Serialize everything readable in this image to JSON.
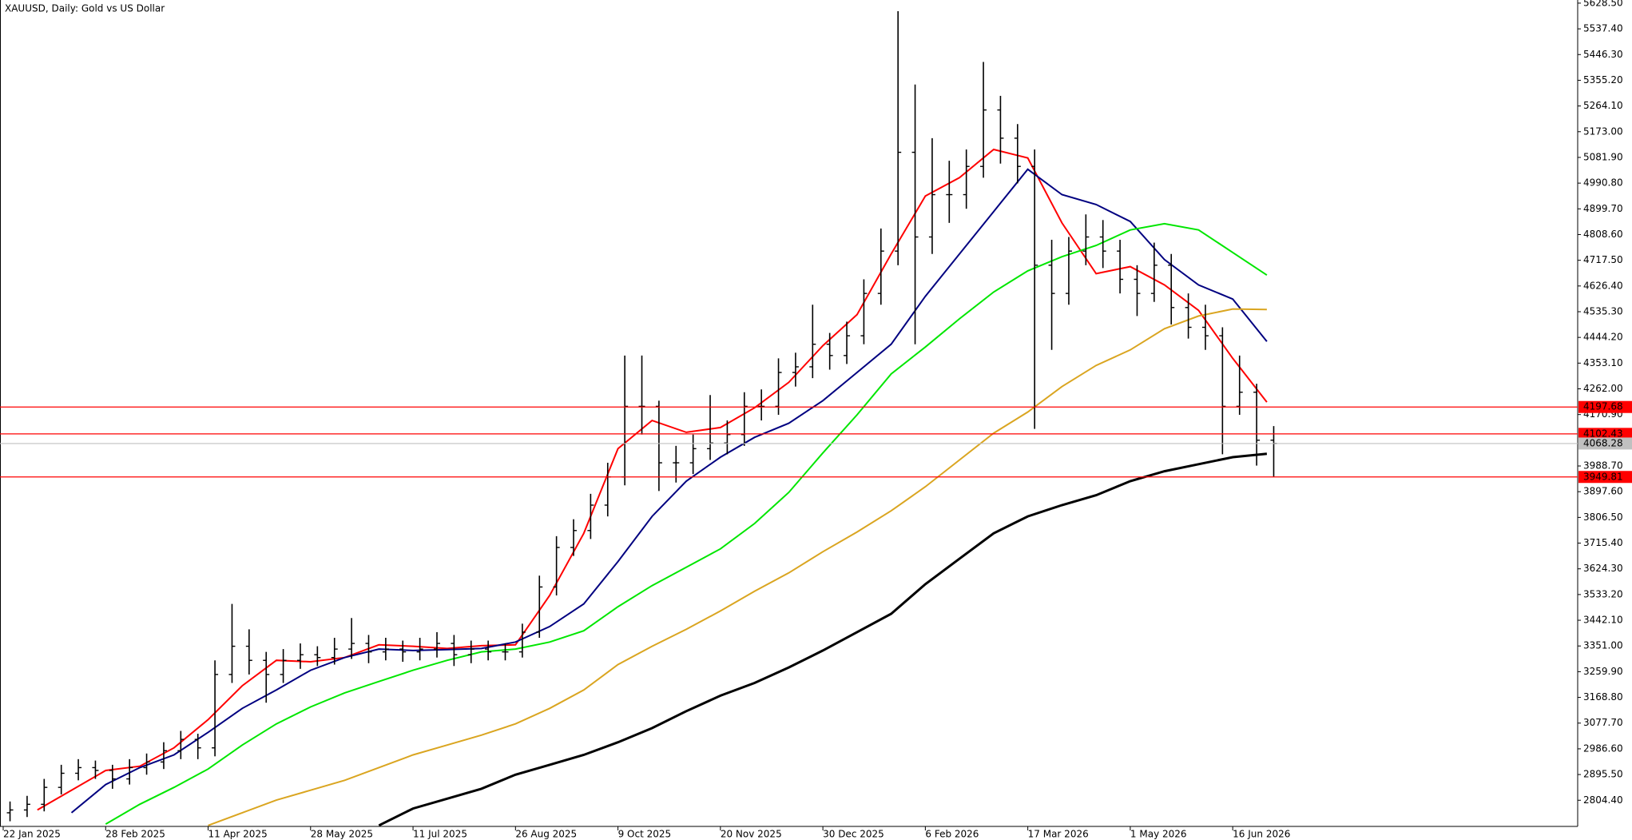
{
  "chart_data": {
    "type": "ohlc",
    "title": "XAUUSD, Daily:  Gold vs US Dollar",
    "color": "#000000",
    "x": [
      2,
      7,
      12,
      17,
      22,
      27,
      32,
      37,
      42,
      47,
      52,
      57,
      62,
      67,
      72,
      77,
      82,
      87,
      92,
      97,
      102,
      107,
      112,
      117,
      122,
      127,
      132,
      137,
      142,
      147,
      152,
      157,
      162,
      167,
      172,
      177,
      182,
      187,
      192,
      197,
      202,
      207,
      212,
      217,
      222,
      227,
      232,
      237,
      242,
      247,
      252,
      257,
      262,
      267,
      272,
      277,
      282,
      287,
      292,
      297,
      302,
      307,
      312,
      317,
      322,
      327,
      332,
      337,
      342,
      347,
      352,
      357,
      362,
      367,
      372
    ],
    "open": [
      2760,
      2770,
      2790,
      2850,
      2900,
      2920,
      2910,
      2880,
      2920,
      2940,
      2980,
      3020,
      2990,
      3250,
      3350,
      3300,
      3250,
      3300,
      3320,
      3310,
      3340,
      3360,
      3330,
      3340,
      3330,
      3340,
      3360,
      3320,
      3340,
      3330,
      3330,
      3400,
      3560,
      3700,
      3760,
      3850,
      3950,
      4200,
      4200,
      4000,
      4000,
      4050,
      4070,
      4100,
      4200,
      4200,
      4320,
      4340,
      4420,
      4380,
      4450,
      4600,
      4750,
      5100,
      4800,
      4950,
      4950,
      5050,
      5250,
      5150,
      5050,
      4700,
      4600,
      4750,
      4800,
      4750,
      4650,
      4600,
      4700,
      4550,
      4480,
      4450,
      4200,
      4250,
      4080
    ],
    "high": [
      2800,
      2820,
      2880,
      2930,
      2950,
      2945,
      2930,
      2950,
      2970,
      3010,
      3050,
      3040,
      3300,
      3500,
      3410,
      3330,
      3340,
      3360,
      3350,
      3380,
      3450,
      3390,
      3380,
      3370,
      3380,
      3400,
      3390,
      3370,
      3370,
      3360,
      3430,
      3600,
      3740,
      3800,
      3890,
      4000,
      4380,
      4380,
      4220,
      4060,
      4100,
      4240,
      4150,
      4250,
      4260,
      4370,
      4390,
      4560,
      4460,
      4500,
      4650,
      4830,
      5600,
      5340,
      5150,
      5070,
      5110,
      5420,
      5300,
      5200,
      5110,
      4790,
      4800,
      4880,
      4860,
      4790,
      4700,
      4780,
      4740,
      4600,
      4560,
      4480,
      4380,
      4280,
      4130
    ],
    "low": [
      2730,
      2745,
      2765,
      2825,
      2875,
      2880,
      2845,
      2860,
      2895,
      2915,
      2950,
      2950,
      2960,
      3220,
      3250,
      3150,
      3220,
      3270,
      3280,
      3285,
      3305,
      3290,
      3300,
      3295,
      3300,
      3310,
      3280,
      3290,
      3300,
      3300,
      3310,
      3380,
      3530,
      3670,
      3730,
      3810,
      3920,
      4100,
      3900,
      3930,
      3960,
      4010,
      4030,
      4060,
      4150,
      4170,
      4270,
      4300,
      4330,
      4350,
      4420,
      4560,
      4700,
      4420,
      4740,
      4850,
      4900,
      5010,
      5060,
      4990,
      4120,
      4400,
      4560,
      4700,
      4690,
      4600,
      4520,
      4570,
      4490,
      4440,
      4400,
      4030,
      4170,
      3990,
      3950
    ],
    "close": [
      2770,
      2790,
      2850,
      2900,
      2920,
      2910,
      2880,
      2920,
      2940,
      2980,
      3020,
      2990,
      3250,
      3350,
      3300,
      3250,
      3300,
      3320,
      3310,
      3340,
      3360,
      3330,
      3340,
      3330,
      3340,
      3360,
      3320,
      3340,
      3330,
      3330,
      3400,
      3560,
      3700,
      3760,
      3850,
      3950,
      4200,
      4200,
      4000,
      4000,
      4050,
      4070,
      4100,
      4200,
      4200,
      4320,
      4340,
      4420,
      4380,
      4450,
      4600,
      4750,
      5100,
      4800,
      4950,
      4950,
      5050,
      5250,
      5150,
      5050,
      4700,
      4600,
      4750,
      4800,
      4750,
      4650,
      4600,
      4700,
      4550,
      4480,
      4450,
      4200,
      4250,
      4080,
      4068.28
    ],
    "lines": [
      {
        "color": "#ff0000",
        "x": [
          0,
          10,
          20,
          30,
          40,
          50,
          60,
          70,
          80,
          90,
          100,
          110,
          120,
          130,
          140,
          150,
          160,
          170,
          180,
          190,
          200,
          210,
          220,
          230,
          240,
          250,
          260,
          270,
          280,
          290,
          300,
          310,
          320,
          330,
          340,
          350,
          360,
          370
        ],
        "values": [
          null,
          2770,
          2840,
          2910,
          2925,
          2990,
          3090,
          3210,
          3300,
          3295,
          3310,
          3355,
          3350,
          3342,
          3352,
          3355,
          3530,
          3750,
          4050,
          4150,
          4108,
          4125,
          4195,
          4285,
          4415,
          4525,
          4740,
          4945,
          5010,
          5110,
          5080,
          4850,
          4670,
          4695,
          4630,
          4540,
          4370,
          4215
        ]
      },
      {
        "color": "#000080",
        "x": [
          0,
          10,
          20,
          30,
          40,
          50,
          60,
          70,
          80,
          90,
          100,
          110,
          120,
          130,
          140,
          150,
          160,
          170,
          180,
          190,
          200,
          210,
          220,
          230,
          240,
          250,
          260,
          270,
          280,
          290,
          300,
          310,
          320,
          330,
          340,
          350,
          360,
          370
        ],
        "values": [
          null,
          null,
          2760,
          2860,
          2920,
          2965,
          3045,
          3130,
          3195,
          3265,
          3310,
          3340,
          3335,
          3338,
          3342,
          3365,
          3420,
          3500,
          3650,
          3810,
          3935,
          4020,
          4090,
          4140,
          4220,
          4320,
          4420,
          4590,
          4740,
          4890,
          5040,
          4950,
          4915,
          4855,
          4720,
          4630,
          4580,
          4430
        ]
      },
      {
        "color": "#00e600",
        "x": [
          0,
          10,
          20,
          30,
          40,
          50,
          60,
          70,
          80,
          90,
          100,
          110,
          120,
          130,
          140,
          150,
          160,
          170,
          180,
          190,
          200,
          210,
          220,
          230,
          240,
          250,
          260,
          270,
          280,
          290,
          300,
          310,
          320,
          330,
          340,
          350,
          360,
          370
        ],
        "values": [
          null,
          null,
          null,
          2720,
          2790,
          2850,
          2915,
          3000,
          3075,
          3135,
          3185,
          3225,
          3265,
          3300,
          3330,
          3340,
          3365,
          3405,
          3490,
          3565,
          3630,
          3695,
          3785,
          3895,
          4035,
          4170,
          4315,
          4410,
          4510,
          4605,
          4680,
          4730,
          4770,
          4825,
          4847,
          4825,
          4745,
          4665
        ]
      },
      {
        "color": "#daa520",
        "x": [
          0,
          10,
          20,
          30,
          40,
          50,
          60,
          70,
          80,
          90,
          100,
          110,
          120,
          130,
          140,
          150,
          160,
          170,
          180,
          190,
          200,
          210,
          220,
          230,
          240,
          250,
          260,
          270,
          280,
          290,
          300,
          310,
          320,
          330,
          340,
          350,
          360,
          370
        ],
        "values": [
          null,
          null,
          null,
          null,
          null,
          null,
          2715,
          2760,
          2805,
          2840,
          2875,
          2920,
          2965,
          3000,
          3035,
          3075,
          3130,
          3195,
          3285,
          3350,
          3410,
          3475,
          3545,
          3610,
          3685,
          3755,
          3830,
          3915,
          4010,
          4105,
          4180,
          4270,
          4345,
          4400,
          4475,
          4520,
          4545,
          4543
        ]
      },
      {
        "color": "#000000",
        "x": [
          0,
          10,
          20,
          30,
          40,
          50,
          60,
          70,
          80,
          90,
          100,
          110,
          120,
          130,
          140,
          150,
          160,
          170,
          180,
          190,
          200,
          210,
          220,
          230,
          240,
          250,
          260,
          270,
          280,
          290,
          300,
          310,
          320,
          330,
          340,
          350,
          360,
          370
        ],
        "values": [
          null,
          null,
          null,
          null,
          null,
          null,
          null,
          null,
          null,
          null,
          null,
          2715,
          2775,
          2810,
          2845,
          2895,
          2930,
          2965,
          3010,
          3060,
          3120,
          3175,
          3220,
          3275,
          3335,
          3400,
          3465,
          3570,
          3660,
          3750,
          3810,
          3850,
          3885,
          3935,
          3970,
          3995,
          4020,
          4032
        ]
      }
    ],
    "levels": [
      {
        "value": 4197.68,
        "color": "#ff0000"
      },
      {
        "value": 4102.43,
        "color": "#ff0000"
      },
      {
        "value": 3949.81,
        "color": "#ff0000"
      },
      {
        "value": 4068.28,
        "color": "#c0c0c0"
      }
    ],
    "xlim": [
      0,
      461
    ],
    "xticks": [
      {
        "value": 0,
        "label": "22 Jan 2025"
      },
      {
        "value": 30,
        "label": "28 Feb 2025"
      },
      {
        "value": 60,
        "label": "11 Apr 2025"
      },
      {
        "value": 90,
        "label": "28 May 2025"
      },
      {
        "value": 120,
        "label": "11 Jul 2025"
      },
      {
        "value": 150,
        "label": "26 Aug 2025"
      },
      {
        "value": 180,
        "label": "9 Oct 2025"
      },
      {
        "value": 210,
        "label": "20 Nov 2025"
      },
      {
        "value": 240,
        "label": "30 Dec 2025"
      },
      {
        "value": 270,
        "label": "6 Feb 2026"
      },
      {
        "value": 300,
        "label": "17 Mar 2026"
      },
      {
        "value": 330,
        "label": "1 May 2026"
      },
      {
        "value": 360,
        "label": "16 Jun 2026"
      }
    ],
    "ylim": [
      2711.7,
      5639.6
    ],
    "yticks": [
      {
        "value": 5628.5,
        "label": "5628.50"
      },
      {
        "value": 5537.4,
        "label": "5537.40"
      },
      {
        "value": 5446.3,
        "label": "5446.30"
      },
      {
        "value": 5355.2,
        "label": "5355.20"
      },
      {
        "value": 5264.1,
        "label": "5264.10"
      },
      {
        "value": 5173,
        "label": "5173.00"
      },
      {
        "value": 5081.9,
        "label": "5081.90"
      },
      {
        "value": 4990.8,
        "label": "4990.80"
      },
      {
        "value": 4899.7,
        "label": "4899.70"
      },
      {
        "value": 4808.6,
        "label": "4808.60"
      },
      {
        "value": 4717.5,
        "label": "4717.50"
      },
      {
        "value": 4626.4,
        "label": "4626.40"
      },
      {
        "value": 4535.3,
        "label": "4535.30"
      },
      {
        "value": 4444.2,
        "label": "4444.20"
      },
      {
        "value": 4353.1,
        "label": "4353.10"
      },
      {
        "value": 4262,
        "label": "4262.00"
      },
      {
        "value": 4170.9,
        "label": "4170.90"
      },
      {
        "value": 3988.7,
        "label": "3988.70"
      },
      {
        "value": 3897.6,
        "label": "3897.60"
      },
      {
        "value": 3806.5,
        "label": "3806.50"
      },
      {
        "value": 3715.4,
        "label": "3715.40"
      },
      {
        "value": 3624.3,
        "label": "3624.30"
      },
      {
        "value": 3533.2,
        "label": "3533.20"
      },
      {
        "value": 3442.1,
        "label": "3442.10"
      },
      {
        "value": 3351,
        "label": "3351.00"
      },
      {
        "value": 3259.9,
        "label": "3259.90"
      },
      {
        "value": 3168.8,
        "label": "3168.80"
      },
      {
        "value": 3077.7,
        "label": "3077.70"
      },
      {
        "value": 2986.6,
        "label": "2986.60"
      },
      {
        "value": 2895.5,
        "label": "2895.50"
      },
      {
        "value": 2804.4,
        "label": "2804.40"
      }
    ]
  }
}
